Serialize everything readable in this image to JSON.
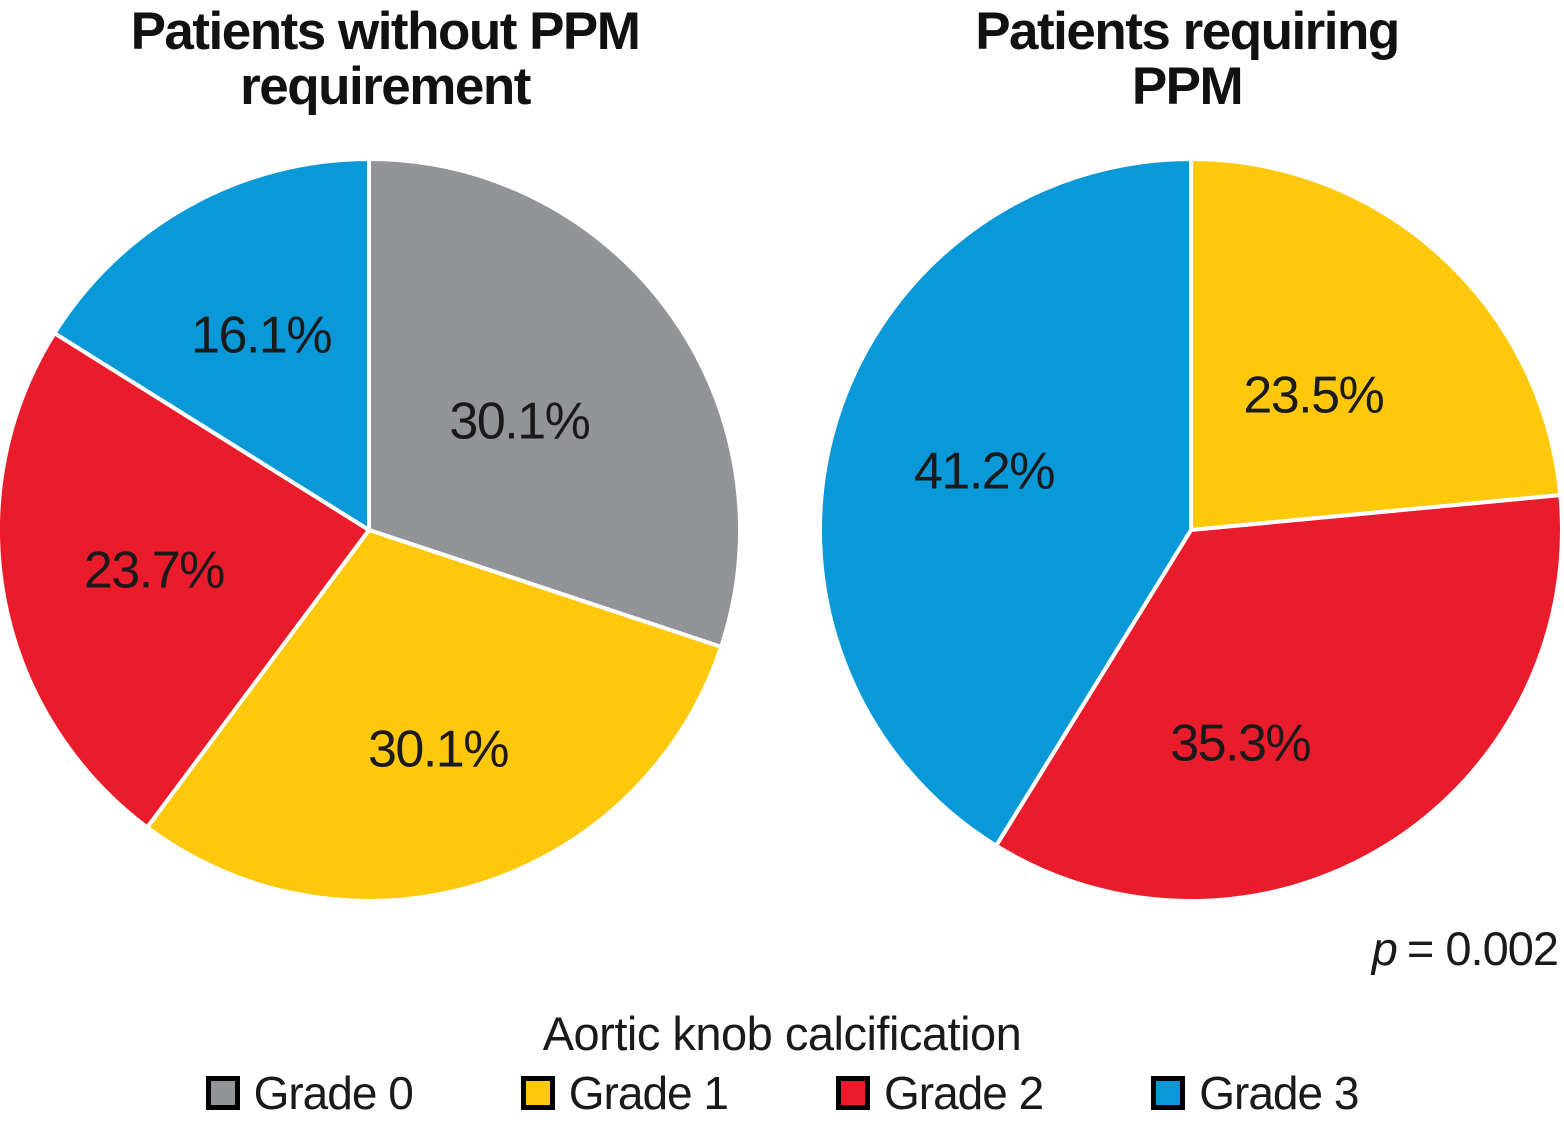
{
  "chart_data": [
    {
      "type": "pie",
      "title": "Patients without PPM\nrequirement",
      "categories": [
        "Grade 0",
        "Grade 1",
        "Grade 2",
        "Grade 3"
      ],
      "values": [
        30.1,
        30.1,
        23.7,
        16.1
      ],
      "labels": [
        "30.1%",
        "30.1%",
        "23.7%",
        "16.1%"
      ],
      "colors": [
        "#929497",
        "#FFC80A",
        "#EA1C2C",
        "#0999D8"
      ],
      "start_angle_deg": 0,
      "direction": "clockwise",
      "slice_border_color": "#ffffff"
    },
    {
      "type": "pie",
      "title": "Patients requiring\nPPM",
      "categories": [
        "Grade 1",
        "Grade 2",
        "Grade 3"
      ],
      "values": [
        23.5,
        35.3,
        41.2
      ],
      "labels": [
        "23.5%",
        "35.3%",
        "41.2%"
      ],
      "colors": [
        "#FFC80A",
        "#EA1C2C",
        "#0999D8"
      ],
      "start_angle_deg": 0,
      "direction": "clockwise",
      "slice_border_color": "#ffffff"
    }
  ],
  "annotation": {
    "variable": "p",
    "value": "= 0.002"
  },
  "legend": {
    "title": "Aortic knob calcification",
    "position": "bottom",
    "items": [
      {
        "label": "Grade 0",
        "color": "#929497"
      },
      {
        "label": "Grade 1",
        "color": "#FFC80A"
      },
      {
        "label": "Grade 2",
        "color": "#EA1C2C"
      },
      {
        "label": "Grade 3",
        "color": "#0999D8"
      }
    ]
  },
  "label_text_color": "#1a1a1a"
}
